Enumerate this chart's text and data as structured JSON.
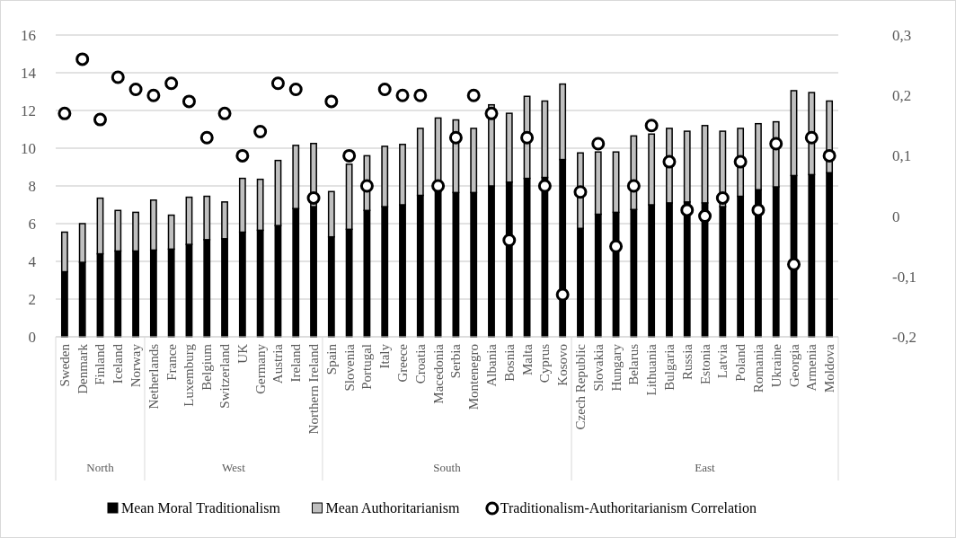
{
  "chart_data": {
    "type": "bar",
    "stacked": true,
    "categories": [
      "Sweden",
      "Denmark",
      "Finland",
      "Iceland",
      "Norway",
      "Netherlands",
      "France",
      "Luxemburg",
      "Belgium",
      "Switzerland",
      "UK",
      "Germany",
      "Austria",
      "Ireland",
      "Northern Ireland",
      "Spain",
      "Slovenia",
      "Portugal",
      "Italy",
      "Greece",
      "Croatia",
      "Macedonia",
      "Serbia",
      "Montenegro",
      "Albania",
      "Bosnia",
      "Malta",
      "Cyprus",
      "Kosovo",
      "Czech Republic",
      "Slovakia",
      "Hungary",
      "Belarus",
      "Lithuania",
      "Bulgaria",
      "Russia",
      "Estonia",
      "Latvia",
      "Poland",
      "Romania",
      "Ukraine",
      "Georgia",
      "Armenia",
      "Moldova"
    ],
    "series": [
      {
        "name": "Mean Moral Traditionalism",
        "color": "#000000",
        "values": [
          3.45,
          3.95,
          4.4,
          4.55,
          4.55,
          4.6,
          4.65,
          4.9,
          5.15,
          5.2,
          5.55,
          5.65,
          5.9,
          6.8,
          6.9,
          5.3,
          5.7,
          6.7,
          6.9,
          7.0,
          7.5,
          7.7,
          7.65,
          7.65,
          8.0,
          8.2,
          8.4,
          8.45,
          9.4,
          5.75,
          6.5,
          6.6,
          6.75,
          7.0,
          7.1,
          7.15,
          7.1,
          6.9,
          7.45,
          7.8,
          7.95,
          8.55,
          8.6,
          8.7
        ]
      },
      {
        "name": "Mean Authoritarianism",
        "color": "#bfbfbf",
        "values": [
          2.1,
          2.05,
          2.95,
          2.15,
          2.05,
          2.65,
          1.8,
          2.5,
          2.3,
          1.95,
          2.85,
          2.7,
          3.45,
          3.35,
          3.35,
          2.4,
          3.45,
          2.9,
          3.2,
          3.2,
          3.55,
          3.9,
          3.85,
          3.4,
          4.3,
          3.65,
          4.35,
          4.05,
          4.0,
          4.0,
          3.3,
          3.2,
          3.9,
          3.75,
          3.95,
          3.75,
          4.1,
          4.0,
          3.6,
          3.5,
          3.45,
          4.5,
          4.35,
          3.8
        ]
      },
      {
        "name": "Traditionalism-Authoritarianism Correlation",
        "type": "scatter",
        "axis": "y2",
        "color": "#ffffff",
        "values": [
          0.17,
          0.26,
          0.16,
          0.23,
          0.21,
          0.2,
          0.22,
          0.19,
          0.13,
          0.17,
          0.1,
          0.14,
          0.22,
          0.21,
          0.03,
          0.19,
          0.1,
          0.05,
          0.21,
          0.2,
          0.2,
          0.05,
          0.13,
          0.2,
          0.17,
          -0.04,
          0.13,
          0.05,
          -0.13,
          0.04,
          0.12,
          -0.05,
          0.05,
          0.15,
          0.09,
          0.01,
          0,
          0.03,
          0.09,
          0.01,
          0.12,
          -0.08,
          0.13,
          0.1
        ]
      }
    ],
    "ylim": [
      0,
      16
    ],
    "yticks": [
      0,
      2,
      4,
      6,
      8,
      10,
      12,
      14,
      16
    ],
    "y2lim": [
      -0.2,
      0.3
    ],
    "y2ticks": [
      {
        "value": -0.2,
        "label": "-0,2"
      },
      {
        "value": -0.1,
        "label": "-0,1"
      },
      {
        "value": 0,
        "label": "0"
      },
      {
        "value": 0.1,
        "label": "0,1"
      },
      {
        "value": 0.2,
        "label": "0,2"
      },
      {
        "value": 0.3,
        "label": "0,3"
      }
    ],
    "annotations": [
      "North",
      "West",
      "South",
      "East"
    ],
    "grid": "y",
    "legend": "bottom",
    "marker": "circle"
  }
}
